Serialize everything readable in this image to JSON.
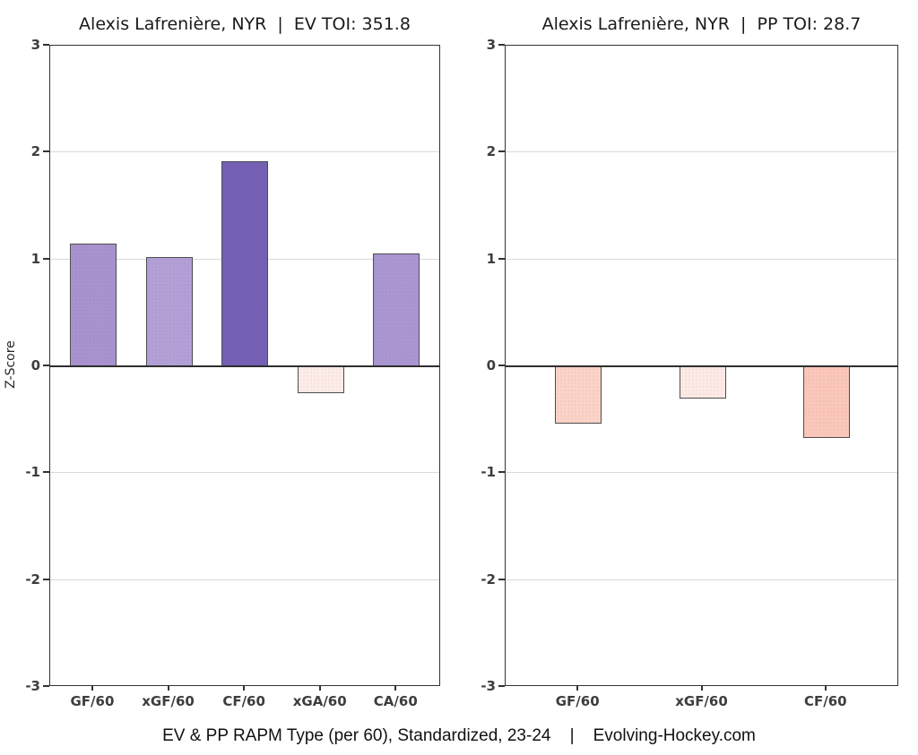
{
  "footer": "EV & PP RAPM Type (per 60), Standardized, 23-24    |    Evolving-Hockey.com",
  "y_axis": {
    "label": "Z-Score",
    "ticks": [
      3,
      2,
      1,
      0,
      -1,
      -2,
      -3
    ],
    "ylim": [
      -3,
      3
    ]
  },
  "chart_data": [
    {
      "type": "bar",
      "title": "Alexis Lafrenière, NYR  |  EV TOI: 351.8",
      "player": "Alexis Lafrenière",
      "team": "NYR",
      "strength": "EV",
      "toi": 351.8,
      "categories": [
        "GF/60",
        "xGF/60",
        "CF/60",
        "xGA/60",
        "CA/60"
      ],
      "values": [
        1.15,
        1.02,
        1.92,
        -0.25,
        1.06
      ],
      "bar_colors": [
        "#a893cf",
        "#b2a0d7",
        "#7460b4",
        "#fdece7",
        "#aa96d2"
      ],
      "xlabel": "",
      "ylabel": "Z-Score",
      "ylim": [
        -3,
        3
      ],
      "yticks": [
        3,
        2,
        1,
        0,
        -1,
        -2,
        -3
      ],
      "grid": true,
      "legend": "none"
    },
    {
      "type": "bar",
      "title": "Alexis Lafrenière, NYR  |  PP TOI: 28.7",
      "player": "Alexis Lafrenière",
      "team": "NYR",
      "strength": "PP",
      "toi": 28.7,
      "categories": [
        "GF/60",
        "xGF/60",
        "CF/60"
      ],
      "values": [
        -0.54,
        -0.3,
        -0.67
      ],
      "bar_colors": [
        "#fcd3c7",
        "#fdeae5",
        "#fbc7b9"
      ],
      "xlabel": "",
      "ylabel": "",
      "ylim": [
        -3,
        3
      ],
      "yticks": [
        3,
        2,
        1,
        0,
        -1,
        -2,
        -3
      ],
      "grid": true,
      "legend": "none"
    }
  ]
}
